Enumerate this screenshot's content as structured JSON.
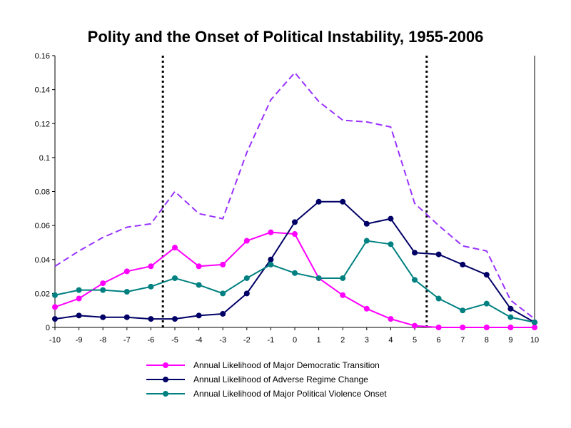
{
  "chart_data": {
    "type": "line",
    "title": "Polity and the Onset of Political Instability, 1955-2006",
    "xlabel": "",
    "ylabel": "",
    "x": [
      -10,
      -9,
      -8,
      -7,
      -6,
      -5,
      -4,
      -3,
      -2,
      -1,
      0,
      1,
      2,
      3,
      4,
      5,
      6,
      7,
      8,
      9,
      10
    ],
    "xlim": [
      -10,
      10
    ],
    "ylim": [
      0,
      0.16
    ],
    "y_ticks": [
      0,
      0.02,
      0.04,
      0.06,
      0.08,
      0.1,
      0.12,
      0.14,
      0.16
    ],
    "y_tick_labels": [
      "0",
      "0.02",
      "0.04",
      "0.06",
      "0.08",
      "0.1",
      "0.12",
      "0.14",
      "0.16"
    ],
    "x_tick_labels": [
      "-10",
      "-9",
      "-8",
      "-7",
      "-6",
      "-5",
      "-4",
      "-3",
      "-2",
      "-1",
      "0",
      "1",
      "2",
      "3",
      "4",
      "5",
      "6",
      "7",
      "8",
      "9",
      "10"
    ],
    "grid": false,
    "legend_position": "bottom",
    "reference_lines_x": [
      -5.5,
      5.5
    ],
    "series": [
      {
        "name": "Annual Likelihood of Major Democratic Transition",
        "color": "#ff00ff",
        "style": "solid",
        "markers": true,
        "in_legend": true,
        "values": [
          0.012,
          0.017,
          0.026,
          0.033,
          0.036,
          0.047,
          0.036,
          0.037,
          0.051,
          0.056,
          0.055,
          0.029,
          0.019,
          0.011,
          0.005,
          0.001,
          0.0,
          0.0,
          0.0,
          0.0,
          0.0
        ]
      },
      {
        "name": "Annual Likelihood of Adverse Regime Change",
        "color": "#000066",
        "style": "solid",
        "markers": true,
        "in_legend": true,
        "values": [
          0.005,
          0.007,
          0.006,
          0.006,
          0.005,
          0.005,
          0.007,
          0.008,
          0.02,
          0.04,
          0.062,
          0.074,
          0.074,
          0.061,
          0.064,
          0.044,
          0.043,
          0.037,
          0.031,
          0.011,
          0.003
        ]
      },
      {
        "name": "Annual Likelihood of Major Political Violence Onset",
        "color": "#008080",
        "style": "solid",
        "markers": true,
        "in_legend": true,
        "values": [
          0.019,
          0.022,
          0.022,
          0.021,
          0.024,
          0.029,
          0.025,
          0.02,
          0.029,
          0.037,
          0.032,
          0.029,
          0.029,
          0.051,
          0.049,
          0.028,
          0.017,
          0.01,
          0.014,
          0.006,
          0.003
        ]
      },
      {
        "color": "#9933ff",
        "style": "dashed",
        "markers": false,
        "in_legend": false,
        "values": [
          0.036,
          0.045,
          0.053,
          0.059,
          0.061,
          0.08,
          0.067,
          0.064,
          0.103,
          0.134,
          0.15,
          0.133,
          0.122,
          0.121,
          0.118,
          0.073,
          0.06,
          0.048,
          0.045,
          0.016,
          0.005
        ]
      }
    ]
  }
}
